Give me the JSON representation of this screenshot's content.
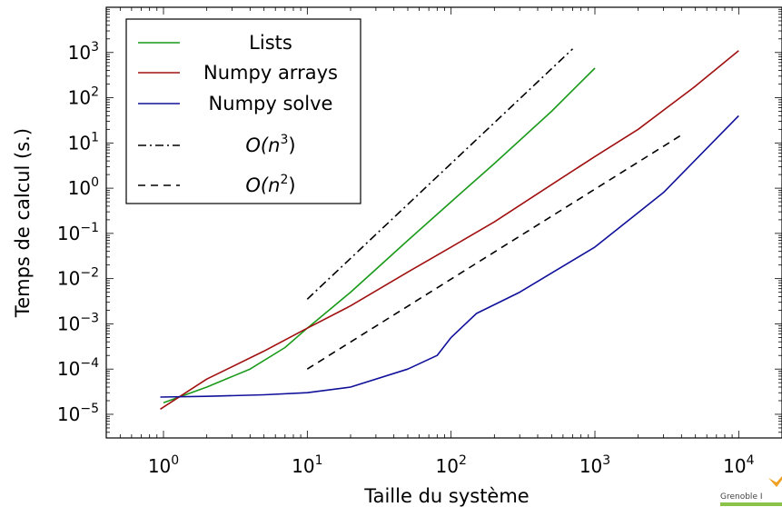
{
  "chart_data": {
    "type": "line",
    "xlabel": "Taille du système",
    "ylabel": "Temps de calcul (s.)",
    "x_scale": "log",
    "y_scale": "log",
    "xlim": [
      0.4,
      20000
    ],
    "ylim": [
      3e-06,
      10000
    ],
    "x_ticks": [
      {
        "value": 1,
        "base": "10",
        "exp": "0"
      },
      {
        "value": 10,
        "base": "10",
        "exp": "1"
      },
      {
        "value": 100,
        "base": "10",
        "exp": "2"
      },
      {
        "value": 1000,
        "base": "10",
        "exp": "3"
      },
      {
        "value": 10000,
        "base": "10",
        "exp": "4"
      }
    ],
    "y_ticks": [
      {
        "value": 1e-05,
        "base": "10",
        "exp": "−5"
      },
      {
        "value": 0.0001,
        "base": "10",
        "exp": "−4"
      },
      {
        "value": 0.001,
        "base": "10",
        "exp": "−3"
      },
      {
        "value": 0.01,
        "base": "10",
        "exp": "−2"
      },
      {
        "value": 0.1,
        "base": "10",
        "exp": "−1"
      },
      {
        "value": 1,
        "base": "10",
        "exp": "0"
      },
      {
        "value": 10,
        "base": "10",
        "exp": "1"
      },
      {
        "value": 100,
        "base": "10",
        "exp": "2"
      },
      {
        "value": 1000,
        "base": "10",
        "exp": "3"
      }
    ],
    "legend_position": "top-left",
    "grid": false,
    "series": [
      {
        "name": "Lists",
        "color": "#1a9a1a",
        "style": "solid",
        "x": [
          1,
          2,
          4,
          7,
          10,
          20,
          50,
          100,
          200,
          500,
          1000
        ],
        "y": [
          1.8e-05,
          4e-05,
          0.0001,
          0.0003,
          0.0008,
          0.005,
          0.07,
          0.5,
          3.5,
          50,
          450
        ]
      },
      {
        "name": "Numpy arrays",
        "color": "#a01010",
        "style": "solid",
        "x": [
          0.95,
          2,
          5,
          10,
          20,
          50,
          100,
          200,
          500,
          1000,
          2000,
          5000,
          10000
        ],
        "y": [
          1.3e-05,
          6e-05,
          0.00025,
          0.0008,
          0.0025,
          0.014,
          0.05,
          0.18,
          1.2,
          5,
          20,
          180,
          1100
        ]
      },
      {
        "name": "Numpy solve",
        "color": "#10109a",
        "style": "solid",
        "x": [
          0.95,
          2,
          5,
          10,
          20,
          50,
          80,
          100,
          150,
          300,
          1000,
          3000,
          10000
        ],
        "y": [
          2.4e-05,
          2.5e-05,
          2.7e-05,
          3e-05,
          4e-05,
          0.0001,
          0.0002,
          0.0005,
          0.0017,
          0.005,
          0.05,
          0.8,
          40
        ]
      },
      {
        "name": "O(n3)",
        "color": "#000000",
        "style": "dashdot",
        "x": [
          10,
          700
        ],
        "y": [
          0.0035,
          1200
        ]
      },
      {
        "name": "O(n2)",
        "color": "#000000",
        "style": "dashed",
        "x": [
          10,
          4000
        ],
        "y": [
          0.0001,
          15
        ]
      }
    ],
    "legend": [
      {
        "key": "lists",
        "label": "Lists"
      },
      {
        "key": "arrays",
        "label": "Numpy arrays"
      },
      {
        "key": "solve",
        "label": "Numpy solve"
      },
      {
        "key": "n3",
        "prefix": "O(n",
        "sup": "3",
        "suffix": ")"
      },
      {
        "key": "n2",
        "prefix": "O(n",
        "sup": "2",
        "suffix": ")"
      }
    ]
  },
  "logo": {
    "text": "Grenoble I"
  }
}
